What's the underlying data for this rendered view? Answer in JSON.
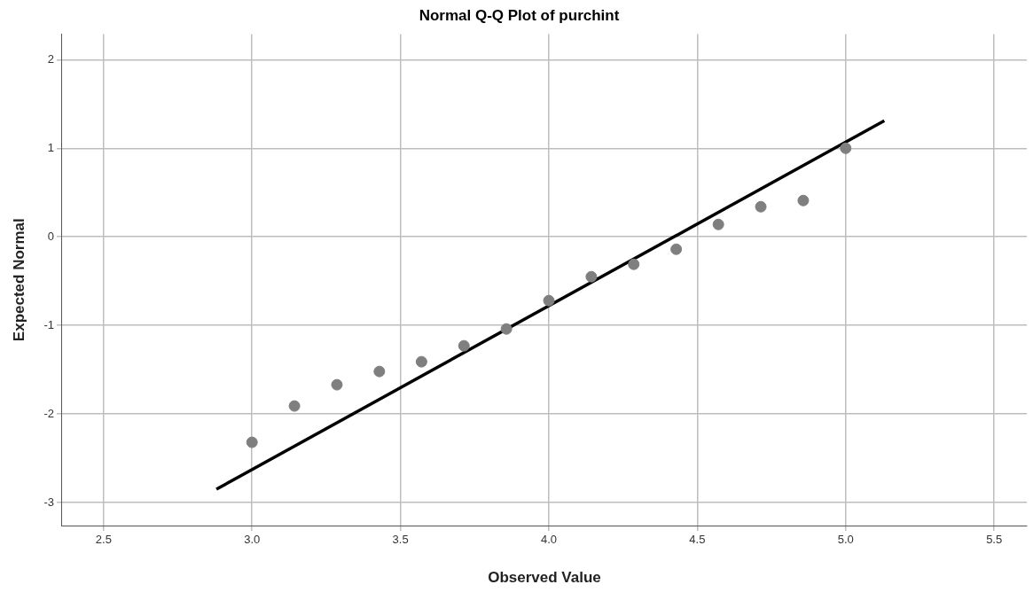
{
  "chart_data": {
    "type": "scatter",
    "title": "Normal Q-Q Plot of purchint",
    "xlabel": "Observed Value",
    "ylabel": "Expected Normal",
    "xlim": [
      2.36,
      5.61
    ],
    "xticks": [
      {
        "value": 2.5,
        "label": "2.5"
      },
      {
        "value": 3,
        "label": "3.0"
      },
      {
        "value": 3.5,
        "label": "3.5"
      },
      {
        "value": 4,
        "label": "4.0"
      },
      {
        "value": 4.5,
        "label": "4.5"
      },
      {
        "value": 5,
        "label": "5.0"
      },
      {
        "value": 5.5,
        "label": "5.5"
      }
    ],
    "ylim": [
      -3.26,
      2.29
    ],
    "yticks": [
      -3,
      -2,
      -1,
      0,
      1,
      2
    ],
    "grid": true,
    "legend": false,
    "series": [
      {
        "color": "#7f7f7f",
        "marker": "circle",
        "x": [
          3.0,
          3.143,
          3.286,
          3.429,
          3.571,
          3.714,
          3.857,
          4.0,
          4.143,
          4.286,
          4.429,
          4.571,
          4.714,
          4.857,
          5.0
        ],
        "values": [
          -2.32,
          -1.91,
          -1.67,
          -1.52,
          -1.41,
          -1.23,
          -1.04,
          -0.72,
          -0.45,
          -0.31,
          -0.14,
          0.14,
          0.34,
          0.41,
          1.0
        ]
      },
      {
        "type": "line",
        "color": "#000000",
        "marker": "none",
        "x": [
          2.88,
          5.13
        ],
        "values": [
          -2.85,
          1.31
        ]
      }
    ]
  }
}
